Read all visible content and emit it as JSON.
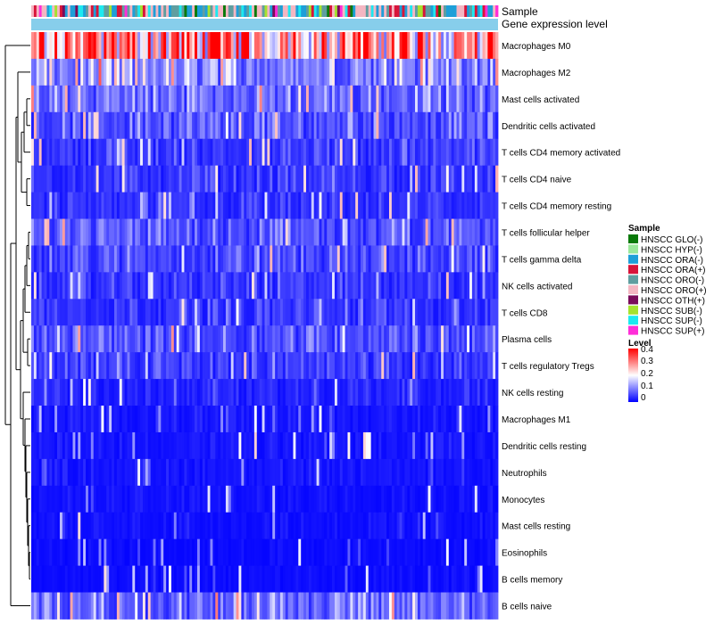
{
  "chart_data": {
    "type": "heatmap",
    "title": "",
    "annotation_tracks": [
      "Sample",
      "Gene expression level"
    ],
    "rows": [
      "Macrophages M0",
      "Macrophages M2",
      "Mast cells activated",
      "Dendritic cells activated",
      "T cells CD4 memory activated",
      "T cells CD4 naive",
      "T cells CD4 memory resting",
      "T cells follicular helper",
      "T cells gamma delta",
      "NK cells activated",
      "T cells CD8",
      "Plasma cells",
      "T cells regulatory  Tregs",
      "NK cells resting",
      "Macrophages M1",
      "Dendritic cells resting",
      "Neutrophils",
      "Monocytes",
      "Mast cells resting",
      "Eosinophils",
      "B cells memory",
      "B cells naive"
    ],
    "row_mean_level": [
      0.3,
      0.12,
      0.09,
      0.07,
      0.05,
      0.045,
      0.04,
      0.07,
      0.06,
      0.045,
      0.045,
      0.07,
      0.05,
      0.03,
      0.02,
      0.018,
      0.018,
      0.015,
      0.014,
      0.01,
      0.01,
      0.09
    ],
    "n_samples": 180,
    "legend_sample": {
      "title": "Sample",
      "entries": [
        {
          "label": "HNSCC GLO(-)",
          "color": "#0a7a0a"
        },
        {
          "label": "HNSCC HYP(-)",
          "color": "#9be89b"
        },
        {
          "label": "HNSCC ORA(-)",
          "color": "#1e9fd8"
        },
        {
          "label": "HNSCC ORA(+)",
          "color": "#d8143a"
        },
        {
          "label": "HNSCC ORO(-)",
          "color": "#5f9ea0"
        },
        {
          "label": "HNSCC ORO(+)",
          "color": "#f4b6c2"
        },
        {
          "label": "HNSCC OTH(+)",
          "color": "#7a0a5a"
        },
        {
          "label": "HNSCC SUB(-)",
          "color": "#a6e22e"
        },
        {
          "label": "HNSCC SUP(-)",
          "color": "#1de9f0"
        },
        {
          "label": "HNSCC SUP(+)",
          "color": "#ff2ed8"
        }
      ]
    },
    "legend_level": {
      "title": "Level",
      "ticks": [
        "0.4",
        "0.3",
        "0.2",
        "0.1",
        "0"
      ],
      "range": [
        0,
        0.4
      ],
      "colors": {
        "low": "#0000ff",
        "mid": "#ffffff",
        "high": "#ff0000"
      }
    },
    "gene_expression_bar_color": "#87ceeb"
  }
}
